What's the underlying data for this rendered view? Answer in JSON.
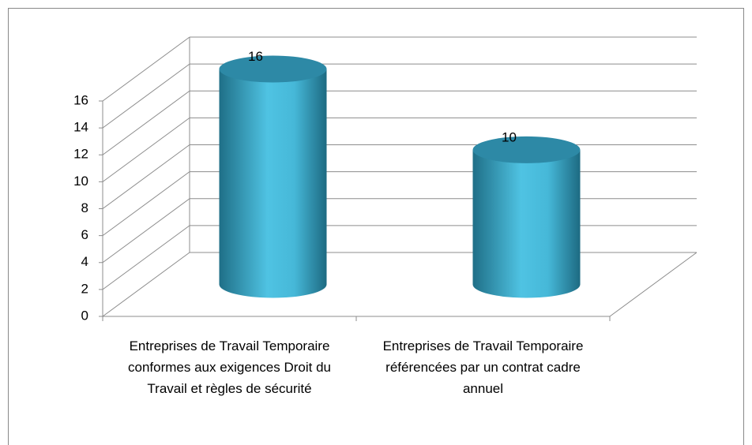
{
  "chart_data": {
    "type": "bar",
    "categories": [
      "Entreprises de Travail Temporaire conformes aux exigences Droit du Travail et règles de sécurité",
      "Entreprises de Travail Temporaire référencées par un contrat cadre annuel"
    ],
    "values": [
      16,
      10
    ],
    "color": "#3aaed0",
    "ylim": [
      0,
      16
    ],
    "yticks": [
      0,
      2,
      4,
      6,
      8,
      10,
      12,
      14,
      16
    ],
    "grid": true
  }
}
